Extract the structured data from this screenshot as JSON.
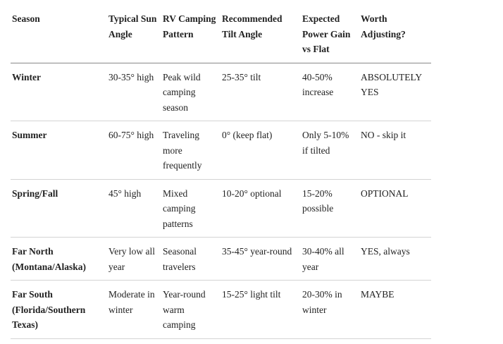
{
  "table": {
    "headers": [
      "Season",
      "Typical Sun Angle",
      "RV Camping Pattern",
      "Recommended Tilt Angle",
      "Expected Power Gain vs Flat",
      "Worth Adjusting?"
    ],
    "rows": [
      [
        "Winter",
        "30-35° high",
        "Peak wild camping season",
        "25-35° tilt",
        "40-50% increase",
        "ABSOLUTELY YES"
      ],
      [
        "Summer",
        "60-75° high",
        "Traveling more frequently",
        "0° (keep flat)",
        "Only 5-10% if tilted",
        "NO - skip it"
      ],
      [
        "Spring/Fall",
        "45° high",
        "Mixed camping patterns",
        "10-20° optional",
        "15-20% possible",
        "OPTIONAL"
      ],
      [
        "Far North (Montana/Alaska)",
        "Very low all year",
        "Seasonal travelers",
        "35-45° year-round",
        "30-40% all year",
        "YES, always"
      ],
      [
        "Far South (Florida/Southern Texas)",
        "Moderate in winter",
        "Year-round warm camping",
        "15-25° light tilt",
        "20-30% in winter",
        "MAYBE"
      ]
    ]
  }
}
